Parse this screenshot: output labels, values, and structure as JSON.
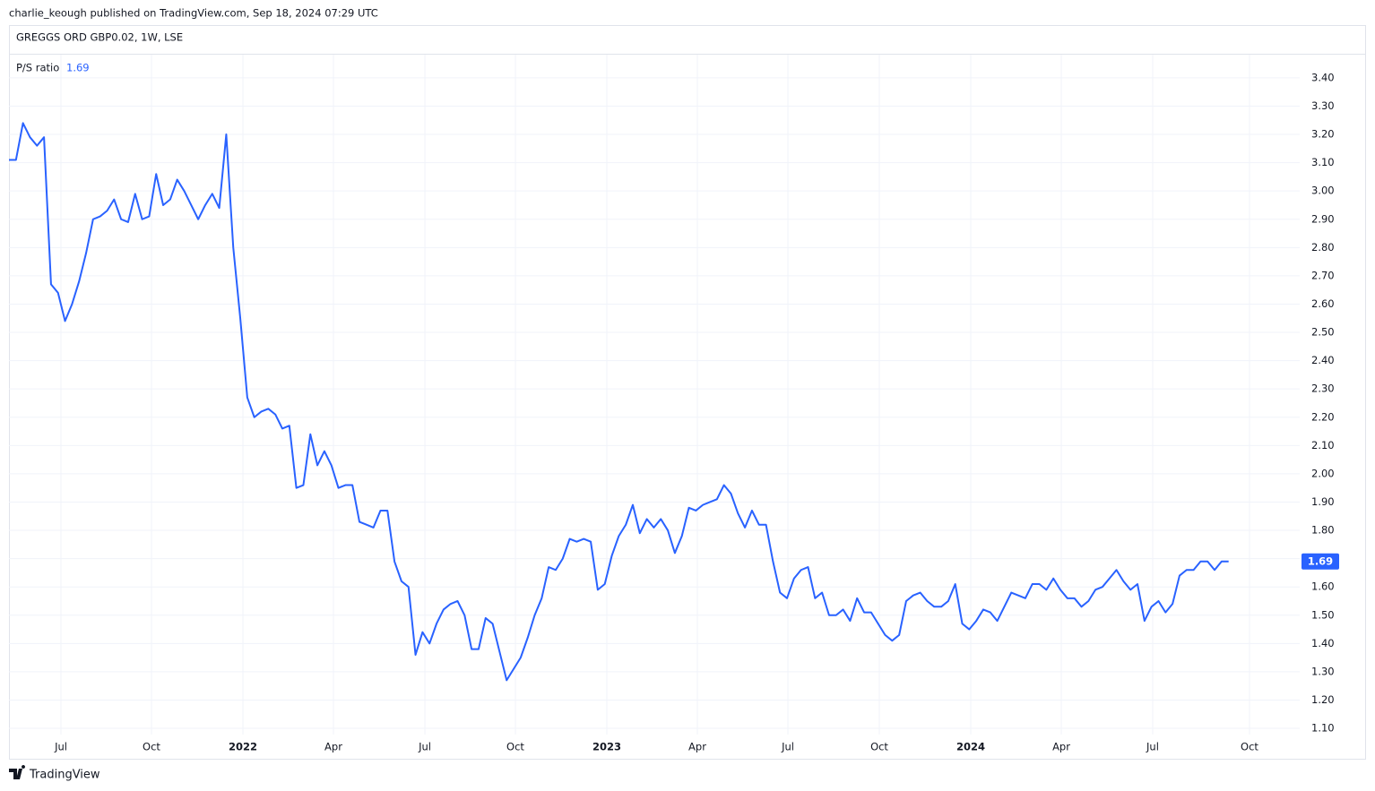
{
  "chart_data": {
    "type": "line",
    "attribution": "charlie_keough published on TradingView.com, Sep 18, 2024 07:29 UTC",
    "title": "GREGGS ORD GBP0.02, 1W, LSE",
    "brand": "TradingView",
    "categories": [
      null,
      null,
      null,
      null,
      null,
      null,
      null,
      null,
      null,
      null,
      null,
      null,
      null,
      null,
      null,
      null,
      null,
      null,
      null,
      null,
      null,
      null,
      null,
      null,
      null,
      null,
      null,
      null,
      null,
      null,
      null,
      null,
      null,
      null,
      null,
      null,
      null,
      null,
      null,
      null,
      null,
      null,
      null,
      null,
      null,
      null,
      null,
      null,
      null,
      null,
      null,
      null,
      null,
      null,
      null,
      null,
      null,
      null,
      null,
      null,
      null,
      null,
      null,
      null,
      null,
      null,
      null,
      null,
      null,
      null,
      null,
      null,
      null,
      null,
      null,
      null,
      null,
      null,
      null,
      null,
      null,
      null,
      null,
      null,
      null,
      null,
      null,
      null,
      null,
      null,
      null,
      null,
      null,
      null,
      null,
      null,
      null,
      null,
      null,
      null,
      null,
      null,
      null,
      null,
      null,
      null,
      null,
      null,
      null,
      null,
      null,
      null,
      null,
      null,
      null,
      null,
      null,
      null,
      null,
      null,
      null,
      null,
      null,
      null,
      null,
      null,
      null,
      null,
      null,
      null,
      null,
      null,
      null,
      null,
      null,
      null,
      null,
      null,
      null,
      null,
      null,
      null,
      null,
      null,
      null,
      null,
      null,
      null,
      null,
      null,
      null,
      null,
      null,
      null,
      null,
      null,
      null,
      null,
      null,
      null,
      null,
      null,
      null,
      null,
      null,
      null,
      null,
      null,
      null,
      null,
      null,
      null,
      null,
      null,
      null
    ],
    "series": [
      {
        "name": "P/S ratio",
        "color": "#2962ff",
        "values": [
          3.11,
          3.11,
          3.24,
          3.19,
          3.16,
          3.19,
          2.67,
          2.64,
          2.54,
          2.6,
          2.68,
          2.78,
          2.9,
          2.91,
          2.93,
          2.97,
          2.9,
          2.89,
          2.99,
          2.9,
          2.91,
          3.06,
          2.95,
          2.97,
          3.04,
          3.0,
          2.95,
          2.9,
          2.95,
          2.99,
          2.94,
          3.2,
          2.8,
          2.55,
          2.27,
          2.2,
          2.22,
          2.23,
          2.21,
          2.16,
          2.17,
          1.95,
          1.96,
          2.14,
          2.03,
          2.08,
          2.03,
          1.95,
          1.96,
          1.96,
          1.83,
          1.82,
          1.81,
          1.87,
          1.87,
          1.69,
          1.62,
          1.6,
          1.36,
          1.44,
          1.4,
          1.47,
          1.52,
          1.54,
          1.55,
          1.5,
          1.38,
          1.38,
          1.49,
          1.47,
          1.37,
          1.27,
          1.31,
          1.35,
          1.42,
          1.5,
          1.56,
          1.67,
          1.66,
          1.7,
          1.77,
          1.76,
          1.77,
          1.76,
          1.59,
          1.61,
          1.71,
          1.78,
          1.82,
          1.89,
          1.79,
          1.84,
          1.81,
          1.84,
          1.8,
          1.72,
          1.78,
          1.88,
          1.87,
          1.89,
          1.9,
          1.91,
          1.96,
          1.93,
          1.86,
          1.81,
          1.87,
          1.82,
          1.82,
          1.69,
          1.58,
          1.56,
          1.63,
          1.66,
          1.67,
          1.56,
          1.58,
          1.5,
          1.5,
          1.52,
          1.48,
          1.56,
          1.51,
          1.51,
          1.47,
          1.43,
          1.41,
          1.43,
          1.55,
          1.57,
          1.58,
          1.55,
          1.53,
          1.53,
          1.55,
          1.61,
          1.47,
          1.45,
          1.48,
          1.52,
          1.51,
          1.48,
          1.53,
          1.58,
          1.57,
          1.56,
          1.61,
          1.61,
          1.59,
          1.63,
          1.59,
          1.56,
          1.56,
          1.53,
          1.55,
          1.59,
          1.6,
          1.63,
          1.66,
          1.62,
          1.59,
          1.61,
          1.48,
          1.53,
          1.55,
          1.51,
          1.54,
          1.64,
          1.66,
          1.66,
          1.69,
          1.69,
          1.66,
          1.69,
          1.69
        ]
      }
    ],
    "ylim": [
      1.078,
      3.482
    ],
    "yticks": [
      {
        "value": 1.1,
        "label": "1.10"
      },
      {
        "value": 1.2,
        "label": "1.20"
      },
      {
        "value": 1.3,
        "label": "1.30"
      },
      {
        "value": 1.4,
        "label": "1.40"
      },
      {
        "value": 1.5,
        "label": "1.50"
      },
      {
        "value": 1.6,
        "label": "1.60"
      },
      {
        "value": 1.7,
        "label": "1.70"
      },
      {
        "value": 1.8,
        "label": "1.80"
      },
      {
        "value": 1.9,
        "label": "1.90"
      },
      {
        "value": 2,
        "label": "2.00"
      },
      {
        "value": 2.1,
        "label": "2.10"
      },
      {
        "value": 2.2,
        "label": "2.20"
      },
      {
        "value": 2.3,
        "label": "2.30"
      },
      {
        "value": 2.4,
        "label": "2.40"
      },
      {
        "value": 2.5,
        "label": "2.50"
      },
      {
        "value": 2.6,
        "label": "2.60"
      },
      {
        "value": 2.7,
        "label": "2.70"
      },
      {
        "value": 2.8,
        "label": "2.80"
      },
      {
        "value": 2.9,
        "label": "2.90"
      },
      {
        "value": 3,
        "label": "3.00"
      },
      {
        "value": 3.1,
        "label": "3.10"
      },
      {
        "value": 3.2,
        "label": "3.20"
      },
      {
        "value": 3.3,
        "label": "3.30"
      },
      {
        "value": 3.4,
        "label": "3.40"
      }
    ],
    "xticks": [
      {
        "value": 7.42,
        "label": "Jul"
      },
      {
        "value": 20.33,
        "label": "Oct"
      },
      {
        "value": 33.38,
        "label": "2022"
      },
      {
        "value": 46.29,
        "label": "Apr"
      },
      {
        "value": 59.34,
        "label": "Jul"
      },
      {
        "value": 72.25,
        "label": "Oct"
      },
      {
        "value": 85.29,
        "label": "2023"
      },
      {
        "value": 98.21,
        "label": "Apr"
      },
      {
        "value": 111.13,
        "label": "Jul"
      },
      {
        "value": 124.17,
        "label": "Oct"
      },
      {
        "value": 137.21,
        "label": "2024"
      },
      {
        "value": 150.13,
        "label": "Apr"
      },
      {
        "value": 163.17,
        "label": "Jul"
      },
      {
        "value": 176.98,
        "label": "Oct"
      }
    ],
    "grid": true
  }
}
